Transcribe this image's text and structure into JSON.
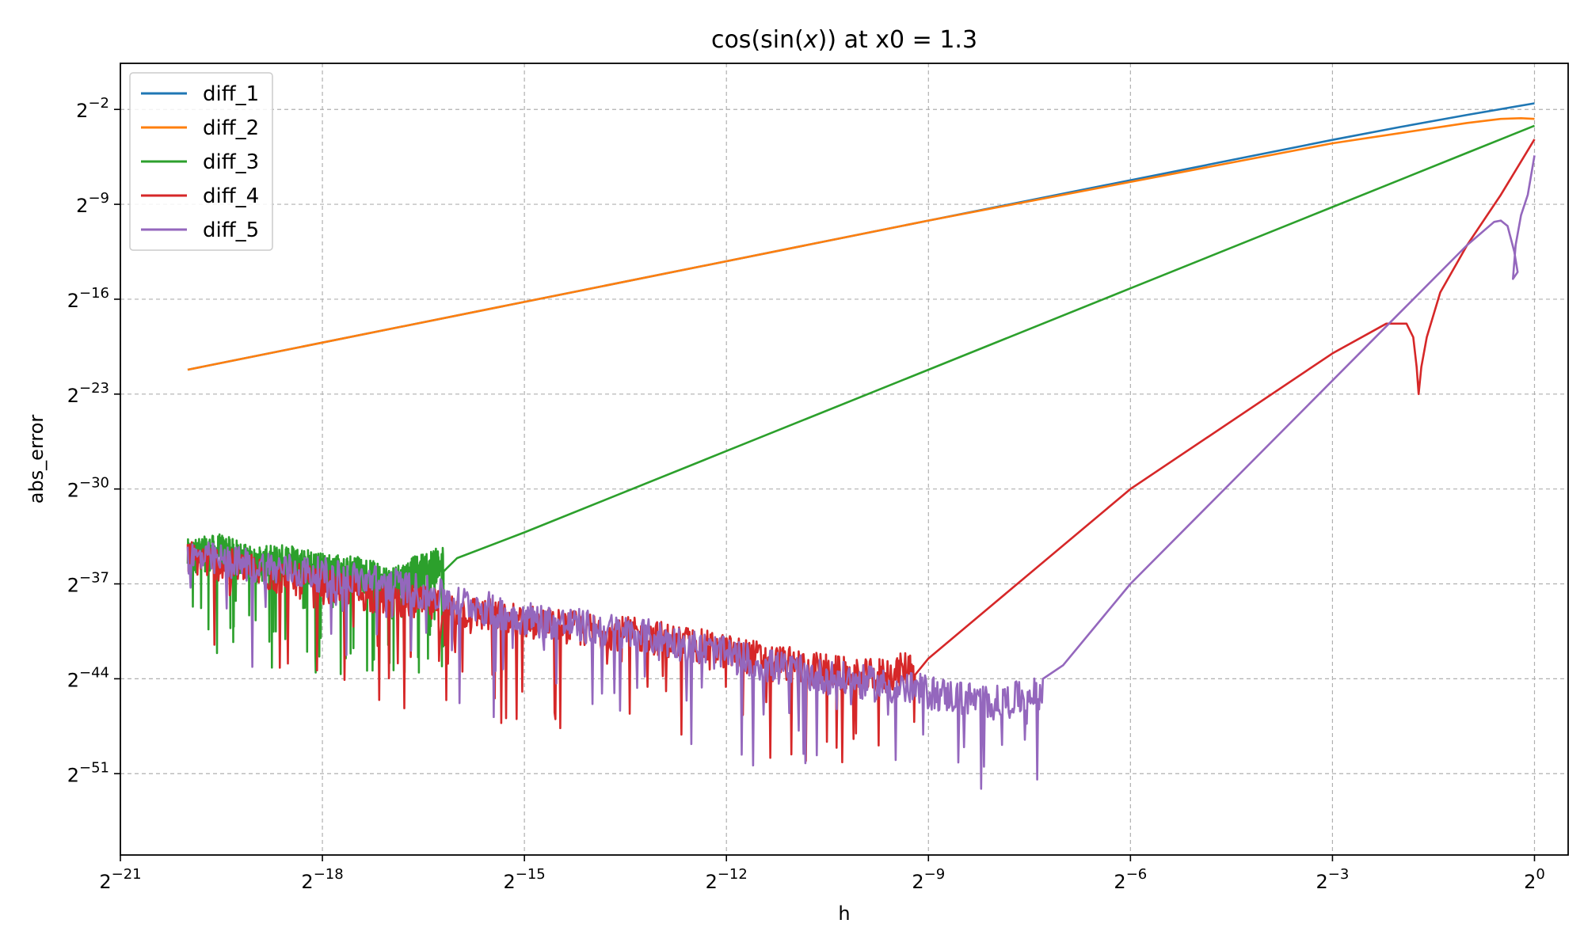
{
  "chart_data": {
    "type": "line",
    "title": "cos(sin(x)) at x0 = 1.3",
    "title_parts": {
      "cos": "cos",
      "lp1": "(",
      "sin": "sin",
      "lp2": "(",
      "x": "x",
      "rp": "))",
      "tail": " at x0 = 1.3"
    },
    "xlabel": "h",
    "ylabel": "abs_error",
    "x_scale": "log2",
    "y_scale": "log2",
    "xlim_exp": [
      -21,
      0.5
    ],
    "ylim_exp": [
      -57,
      1.4
    ],
    "x_ticks": [
      {
        "base": "2",
        "exp": "−21",
        "value_exp": -21
      },
      {
        "base": "2",
        "exp": "−18",
        "value_exp": -18
      },
      {
        "base": "2",
        "exp": "−15",
        "value_exp": -15
      },
      {
        "base": "2",
        "exp": "−12",
        "value_exp": -12
      },
      {
        "base": "2",
        "exp": "−9",
        "value_exp": -9
      },
      {
        "base": "2",
        "exp": "−6",
        "value_exp": -6
      },
      {
        "base": "2",
        "exp": "−3",
        "value_exp": -3
      },
      {
        "base": "2",
        "exp": "0",
        "value_exp": 0
      }
    ],
    "y_ticks": [
      {
        "base": "2",
        "exp": "−2",
        "value_exp": -2
      },
      {
        "base": "2",
        "exp": "−9",
        "value_exp": -9
      },
      {
        "base": "2",
        "exp": "−16",
        "value_exp": -16
      },
      {
        "base": "2",
        "exp": "−23",
        "value_exp": -23
      },
      {
        "base": "2",
        "exp": "−30",
        "value_exp": -30
      },
      {
        "base": "2",
        "exp": "−37",
        "value_exp": -37
      },
      {
        "base": "2",
        "exp": "−44",
        "value_exp": -44
      },
      {
        "base": "2",
        "exp": "−51",
        "value_exp": -51
      }
    ],
    "grid": true,
    "legend_position": "upper-left",
    "series": [
      {
        "name": "diff_1",
        "color": "#1f77b4",
        "points": [
          [
            -20,
            -21.2
          ],
          [
            -9,
            -10.2
          ],
          [
            -3,
            -4.25
          ],
          [
            -2,
            -3.3
          ],
          [
            -1,
            -2.4
          ],
          [
            0,
            -1.55
          ]
        ]
      },
      {
        "name": "diff_2",
        "color": "#ff7f0e",
        "points": [
          [
            -20,
            -21.2
          ],
          [
            -9,
            -10.2
          ],
          [
            -3,
            -4.5
          ],
          [
            -2,
            -3.75
          ],
          [
            -1,
            -3.0
          ],
          [
            -0.5,
            -2.7
          ],
          [
            -0.2,
            -2.65
          ],
          [
            0,
            -2.7
          ]
        ]
      },
      {
        "name": "diff_3",
        "color": "#2ca02c",
        "points": [
          [
            -20,
            -35.0
          ],
          [
            -19.5,
            -34.6
          ],
          [
            -19,
            -35.6
          ],
          [
            -18.5,
            -35.3
          ],
          [
            -18,
            -36.0
          ],
          [
            -17.5,
            -36.2
          ],
          [
            -17,
            -37.0
          ],
          [
            -16.5,
            -36.0
          ],
          [
            -16,
            -35.1
          ],
          [
            -15,
            -33.2
          ],
          [
            -12,
            -27.2
          ],
          [
            -9,
            -21.2
          ],
          [
            -6,
            -15.2
          ],
          [
            -3,
            -9.2
          ],
          [
            -1,
            -5.2
          ],
          [
            0,
            -3.2
          ]
        ]
      },
      {
        "name": "diff_4",
        "color": "#d62728",
        "points": [
          [
            -20,
            -35.0
          ],
          [
            -18,
            -37.2
          ],
          [
            -15,
            -39.8
          ],
          [
            -13,
            -41.0
          ],
          [
            -11,
            -43.0
          ],
          [
            -10,
            -43.9
          ],
          [
            -9.5,
            -43.6
          ],
          [
            -9,
            -42.5
          ],
          [
            -6,
            -30.0
          ],
          [
            -3,
            -20.0
          ],
          [
            -2.2,
            -17.8
          ],
          [
            -1.9,
            -17.8
          ],
          [
            -1.8,
            -18.8
          ],
          [
            -1.75,
            -21.0
          ],
          [
            -1.72,
            -23.0
          ],
          [
            -1.68,
            -21.0
          ],
          [
            -1.6,
            -18.8
          ],
          [
            -1.4,
            -15.5
          ],
          [
            -1.0,
            -12.0
          ],
          [
            -0.5,
            -8.3
          ],
          [
            0,
            -4.2
          ]
        ]
      },
      {
        "name": "diff_5",
        "color": "#9467bd",
        "points": [
          [
            -20,
            -35.0
          ],
          [
            -17,
            -37.0
          ],
          [
            -15,
            -39.5
          ],
          [
            -13,
            -41.0
          ],
          [
            -11,
            -43.5
          ],
          [
            -9,
            -45.0
          ],
          [
            -8,
            -45.8
          ],
          [
            -7.4,
            -45.2
          ],
          [
            -7,
            -43.0
          ],
          [
            -6,
            -37.0
          ],
          [
            -3,
            -22.0
          ],
          [
            -2,
            -17.0
          ],
          [
            -1,
            -12.0
          ],
          [
            -0.6,
            -10.3
          ],
          [
            -0.5,
            -10.2
          ],
          [
            -0.4,
            -10.6
          ],
          [
            -0.3,
            -12.5
          ],
          [
            -0.25,
            -14.0
          ],
          [
            -0.32,
            -14.5
          ],
          [
            -0.28,
            -12.0
          ],
          [
            -0.2,
            -9.8
          ],
          [
            -0.1,
            -8.3
          ],
          [
            0,
            -5.4
          ]
        ]
      }
    ]
  }
}
